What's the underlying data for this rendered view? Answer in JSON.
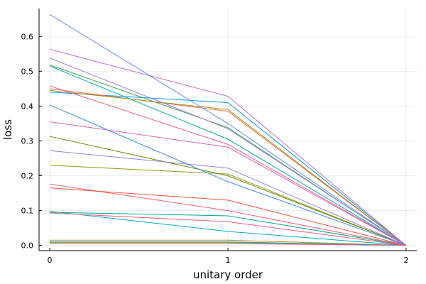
{
  "chart_data": {
    "type": "line",
    "title": "",
    "xlabel": "unitary order",
    "ylabel": "loss",
    "x": [
      0,
      1,
      2
    ],
    "xlim": [
      -0.06,
      2.06
    ],
    "ylim": [
      -0.015,
      0.68
    ],
    "xticks": [
      0,
      1,
      2
    ],
    "yticks": [
      0.0,
      0.1,
      0.2,
      0.3,
      0.4,
      0.5,
      0.6
    ],
    "ytick_labels": [
      "0.0",
      "0.1",
      "0.2",
      "0.3",
      "0.4",
      "0.5",
      "0.6"
    ],
    "xtick_labels": [
      "0",
      "1",
      "2"
    ],
    "grid": true,
    "legend": "none",
    "series": [
      {
        "color": "#009af9",
        "values": [
          0.44,
          0.41,
          0.0
        ]
      },
      {
        "color": "#e26f46",
        "values": [
          0.45,
          0.385,
          0.0
        ]
      },
      {
        "color": "#3da44d",
        "values": [
          0.518,
          0.338,
          0.0
        ]
      },
      {
        "color": "#c271d2",
        "values": [
          0.563,
          0.428,
          0.0
        ]
      },
      {
        "color": "#ac8d18",
        "values": [
          0.445,
          0.39,
          0.0
        ]
      },
      {
        "color": "#00a9ad",
        "values": [
          0.515,
          0.305,
          0.0
        ]
      },
      {
        "color": "#ed5d92",
        "values": [
          0.458,
          0.29,
          0.0
        ]
      },
      {
        "color": "#c68225",
        "values": [
          0.015,
          0.015,
          0.0
        ]
      },
      {
        "color": "#00a98d",
        "values": [
          0.095,
          0.085,
          0.0
        ]
      },
      {
        "color": "#8e971e",
        "values": [
          0.23,
          0.205,
          0.0
        ]
      },
      {
        "color": "#00a8cb",
        "values": [
          0.098,
          0.04,
          0.0
        ]
      },
      {
        "color": "#9b7fe9",
        "values": [
          0.538,
          0.335,
          0.0
        ]
      },
      {
        "color": "#618df6",
        "values": [
          0.663,
          0.35,
          0.0
        ]
      },
      {
        "color": "#f05f73",
        "values": [
          0.176,
          0.1,
          0.0
        ]
      },
      {
        "color": "#dd64b5",
        "values": [
          0.355,
          0.282,
          0.0
        ]
      },
      {
        "color": "#6a8d01",
        "values": [
          0.313,
          0.2,
          0.0
        ]
      },
      {
        "color": "#9b7fe9",
        "values": [
          0.272,
          0.222,
          0.0
        ]
      },
      {
        "color": "#e6553b",
        "values": [
          0.165,
          0.13,
          0.0
        ]
      },
      {
        "color": "#3d8bf0",
        "values": [
          0.403,
          0.183,
          0.0
        ]
      },
      {
        "color": "#f05f73",
        "values": [
          0.093,
          0.068,
          0.0
        ]
      },
      {
        "color": "#8e971e",
        "values": [
          0.008,
          0.008,
          0.0
        ]
      },
      {
        "color": "#00a9ad",
        "values": [
          0.01,
          0.01,
          0.0
        ]
      },
      {
        "color": "#ed5d92",
        "values": [
          0.005,
          0.005,
          0.0
        ]
      }
    ]
  }
}
